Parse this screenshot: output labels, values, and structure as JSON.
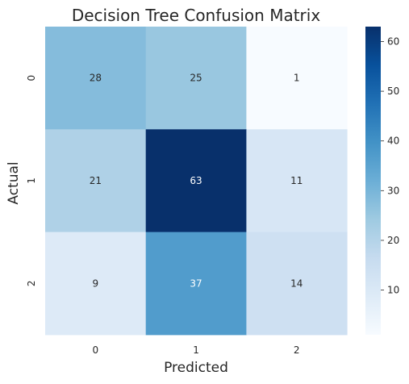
{
  "chart_data": {
    "type": "heatmap",
    "title": "Decision Tree Confusion Matrix",
    "xlabel": "Predicted",
    "ylabel": "Actual",
    "x_categories": [
      "0",
      "1",
      "2"
    ],
    "y_categories": [
      "0",
      "1",
      "2"
    ],
    "values": [
      [
        28,
        25,
        1
      ],
      [
        21,
        63,
        11
      ],
      [
        9,
        37,
        14
      ]
    ],
    "value_range": [
      1,
      63
    ],
    "colormap": "Blues",
    "colorbar_ticks": [
      10,
      20,
      30,
      40,
      50,
      60
    ],
    "colorbar_labels": [
      "10",
      "20",
      "30",
      "40",
      "50",
      "60"
    ]
  }
}
